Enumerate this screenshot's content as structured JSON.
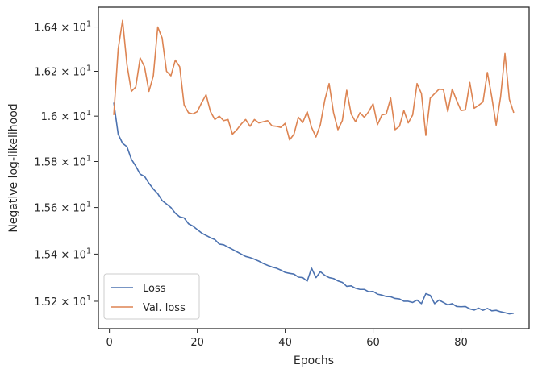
{
  "chart_data": {
    "type": "line",
    "title": "",
    "xlabel": "Epochs",
    "ylabel": "Negative log-likelihood",
    "xlim": [
      -2.5,
      95.5
    ],
    "ylim": [
      15.085,
      16.49
    ],
    "y_scale": "log",
    "grid": false,
    "legend_position": "lower-left",
    "x_ticks": [
      0,
      20,
      40,
      60,
      80
    ],
    "x_tick_labels": [
      "0",
      "20",
      "40",
      "60",
      "80"
    ],
    "y_ticks": [
      15.2,
      15.4,
      15.6,
      15.8,
      16.0,
      16.2,
      16.4
    ],
    "y_tick_labels": [
      {
        "mant": "1.52",
        "times": "×",
        "base": "10",
        "exp": "1"
      },
      {
        "mant": "1.54",
        "times": "×",
        "base": "10",
        "exp": "1"
      },
      {
        "mant": "1.56",
        "times": "×",
        "base": "10",
        "exp": "1"
      },
      {
        "mant": "1.58",
        "times": "×",
        "base": "10",
        "exp": "1"
      },
      {
        "mant": "1.6",
        "times": "×",
        "base": "10",
        "exp": "1"
      },
      {
        "mant": "1.62",
        "times": "×",
        "base": "10",
        "exp": "1"
      },
      {
        "mant": "1.64",
        "times": "×",
        "base": "10",
        "exp": "1"
      }
    ],
    "series": [
      {
        "name": "Loss",
        "color": "#4c72b0",
        "x": [
          1,
          2,
          3,
          4,
          5,
          6,
          7,
          8,
          9,
          10,
          11,
          12,
          13,
          14,
          15,
          16,
          17,
          18,
          19,
          20,
          21,
          22,
          23,
          24,
          25,
          26,
          27,
          28,
          29,
          30,
          31,
          32,
          33,
          34,
          35,
          36,
          37,
          38,
          39,
          40,
          41,
          42,
          43,
          44,
          45,
          46,
          47,
          48,
          49,
          50,
          51,
          52,
          53,
          54,
          55,
          56,
          57,
          58,
          59,
          60,
          61,
          62,
          63,
          64,
          65,
          66,
          67,
          68,
          69,
          70,
          71,
          72,
          73,
          74,
          75,
          76,
          77,
          78,
          79,
          80,
          81,
          82,
          83,
          84,
          85,
          86,
          87,
          88,
          89,
          90,
          91,
          92
        ],
        "values": [
          16.06,
          15.92,
          15.88,
          15.865,
          15.81,
          15.78,
          15.745,
          15.735,
          15.705,
          15.68,
          15.66,
          15.63,
          15.615,
          15.6,
          15.575,
          15.56,
          15.555,
          15.53,
          15.52,
          15.505,
          15.49,
          15.48,
          15.47,
          15.462,
          15.443,
          15.44,
          15.43,
          15.42,
          15.41,
          15.4,
          15.39,
          15.385,
          15.378,
          15.37,
          15.36,
          15.352,
          15.345,
          15.34,
          15.332,
          15.322,
          15.318,
          15.315,
          15.302,
          15.3,
          15.285,
          15.34,
          15.3,
          15.325,
          15.31,
          15.3,
          15.296,
          15.286,
          15.28,
          15.263,
          15.265,
          15.255,
          15.25,
          15.25,
          15.24,
          15.242,
          15.23,
          15.226,
          15.22,
          15.219,
          15.212,
          15.21,
          15.2,
          15.2,
          15.195,
          15.205,
          15.19,
          15.232,
          15.225,
          15.19,
          15.205,
          15.195,
          15.185,
          15.19,
          15.178,
          15.177,
          15.178,
          15.168,
          15.163,
          15.171,
          15.162,
          15.17,
          15.16,
          15.162,
          15.156,
          15.152,
          15.147,
          15.15
        ]
      },
      {
        "name": "Val. loss",
        "color": "#dd8452",
        "x": [
          1,
          2,
          3,
          4,
          5,
          6,
          7,
          8,
          9,
          10,
          11,
          12,
          13,
          14,
          15,
          16,
          17,
          18,
          19,
          20,
          21,
          22,
          23,
          24,
          25,
          26,
          27,
          28,
          29,
          30,
          31,
          32,
          33,
          34,
          35,
          36,
          37,
          38,
          39,
          40,
          41,
          42,
          43,
          44,
          45,
          46,
          47,
          48,
          49,
          50,
          51,
          52,
          53,
          54,
          55,
          56,
          57,
          58,
          59,
          60,
          61,
          62,
          63,
          64,
          65,
          66,
          67,
          68,
          69,
          70,
          71,
          72,
          73,
          74,
          75,
          76,
          77,
          78,
          79,
          80,
          81,
          82,
          83,
          84,
          85,
          86,
          87,
          88,
          89,
          90,
          91,
          92
        ],
        "values": [
          16.005,
          16.3,
          16.43,
          16.23,
          16.11,
          16.13,
          16.26,
          16.22,
          16.11,
          16.18,
          16.4,
          16.35,
          16.2,
          16.18,
          16.25,
          16.22,
          16.05,
          16.015,
          16.01,
          16.02,
          16.06,
          16.095,
          16.02,
          15.985,
          16.0,
          15.98,
          15.985,
          15.92,
          15.94,
          15.965,
          15.985,
          15.955,
          15.985,
          15.97,
          15.975,
          15.98,
          15.957,
          15.955,
          15.95,
          15.968,
          15.895,
          15.92,
          15.995,
          15.972,
          16.02,
          15.95,
          15.908,
          15.962,
          16.07,
          16.145,
          16.015,
          15.94,
          15.98,
          16.115,
          16.01,
          15.975,
          16.015,
          15.995,
          16.02,
          16.055,
          15.962,
          16.005,
          16.01,
          16.08,
          15.94,
          15.955,
          16.025,
          15.97,
          16.005,
          16.145,
          16.1,
          15.915,
          16.08,
          16.1,
          16.12,
          16.118,
          16.02,
          16.12,
          16.07,
          16.025,
          16.028,
          16.15,
          16.035,
          16.048,
          16.063,
          16.195,
          16.085,
          15.96,
          16.085,
          16.28,
          16.075,
          16.015
        ]
      }
    ]
  }
}
